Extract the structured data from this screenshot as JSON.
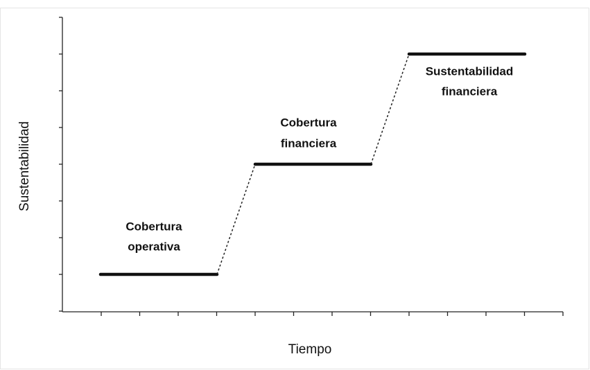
{
  "axes": {
    "y_label": "Sustentabilidad",
    "x_label": "Tiempo"
  },
  "stages": [
    {
      "lines": [
        "Cobertura",
        "operativa"
      ]
    },
    {
      "lines": [
        "Cobertura",
        "financiera"
      ]
    },
    {
      "lines": [
        "Sustentabilidad",
        "financiera"
      ]
    }
  ]
}
